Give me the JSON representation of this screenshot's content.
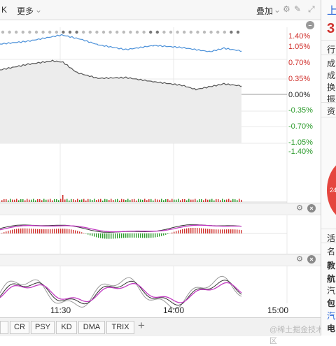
{
  "toolbar": {
    "k_label": "K",
    "more_label": "更多",
    "overlay_label": "叠加"
  },
  "chart": {
    "y_labels_up": [
      "1.40%",
      "1.05%",
      "0.70%",
      "0.35%"
    ],
    "y_label_zero": "0.00%",
    "y_labels_down": [
      "-0.35%",
      "-0.70%",
      "-1.05%",
      "-1.40%"
    ],
    "x_labels": [
      "11:30",
      "14:00",
      "15:00"
    ]
  },
  "sidebar": {
    "title_char": "上",
    "price_char": "3",
    "rows_top": [
      "行",
      "成",
      "成",
      "换",
      "振",
      "资"
    ],
    "rows_bottom": [
      "活",
      "名",
      "教",
      "航",
      "汽",
      "包",
      "汽",
      "电"
    ],
    "pie_value": "24"
  },
  "tabs": {
    "items": [
      "",
      "CR",
      "PSY",
      "KD",
      "DMA",
      "TRIX"
    ],
    "add": "+"
  },
  "watermark": "@稀土掘金技术社区",
  "colors": {
    "up": "#d0312d",
    "down": "#2a9a2a",
    "index_line": "#4a90d9",
    "price_line": "#555555",
    "macd_line": "#c23bc2"
  }
}
